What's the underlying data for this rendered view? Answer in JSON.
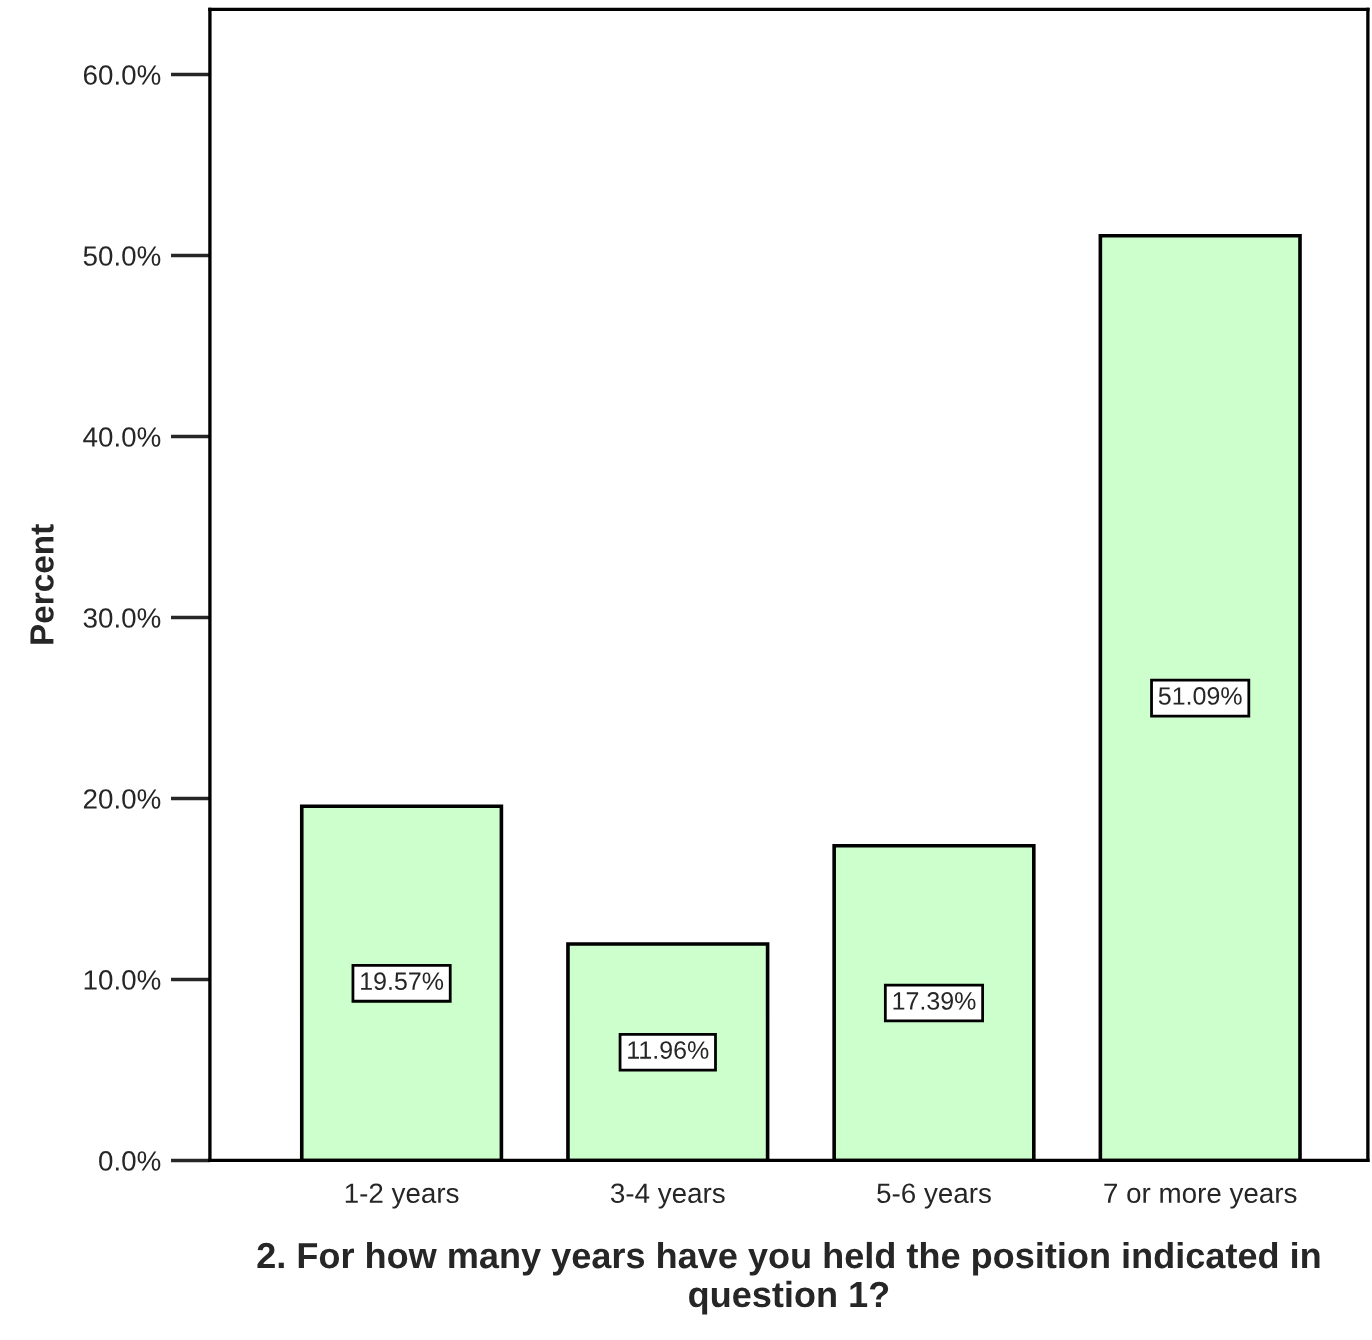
{
  "chart_data": {
    "type": "bar",
    "categories": [
      "1-2 years",
      "3-4 years",
      "5-6 years",
      "7 or more years"
    ],
    "values": [
      19.57,
      11.96,
      17.39,
      51.09
    ],
    "value_labels": [
      "19.57%",
      "11.96%",
      "17.39%",
      "51.09%"
    ],
    "color": "#ccffcc",
    "xlabel": "2. For how many years have you held the position indicated in question 1?",
    "ylabel": "Percent",
    "ylim": [
      0,
      63.6
    ],
    "yticks": [
      {
        "value": 0,
        "label": "0.0%"
      },
      {
        "value": 10,
        "label": "10.0%"
      },
      {
        "value": 20,
        "label": "20.0%"
      },
      {
        "value": 30,
        "label": "30.0%"
      },
      {
        "value": 40,
        "label": "40.0%"
      },
      {
        "value": 50,
        "label": "50.0%"
      },
      {
        "value": 60,
        "label": "60.0%"
      }
    ],
    "grid": false,
    "legend": false
  }
}
